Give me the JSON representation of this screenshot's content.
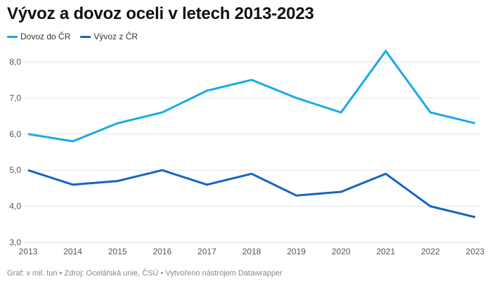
{
  "header": {
    "title": "Vývoz a dovoz oceli v letech 2013-2023"
  },
  "legend": [
    {
      "label": "Dovoz do ČR",
      "color": "#18a9e8"
    },
    {
      "label": "Vývoz z ČR",
      "color": "#1565c0"
    }
  ],
  "footer": {
    "text": "Graf: v mil. tun • Zdroj: Ocelářská unie, ČSÚ • Vytvořeno nástrojem Datawrapper"
  },
  "chart_data": {
    "type": "line",
    "title": "Vývoz a dovoz oceli v letech 2013-2023",
    "xlabel": "",
    "ylabel": "",
    "unit": "mil. tun",
    "x": [
      "2013",
      "2014",
      "2015",
      "2016",
      "2017",
      "2018",
      "2019",
      "2020",
      "2021",
      "2022",
      "2023"
    ],
    "series": [
      {
        "name": "Dovoz do ČR",
        "color": "#18a9e8",
        "values": [
          6.0,
          5.8,
          6.3,
          6.6,
          7.2,
          7.5,
          7.0,
          6.6,
          8.3,
          6.6,
          6.3
        ]
      },
      {
        "name": "Vývoz z ČR",
        "color": "#1565c0",
        "values": [
          5.0,
          4.6,
          4.7,
          5.0,
          4.6,
          4.9,
          4.3,
          4.4,
          4.9,
          4.0,
          3.7
        ]
      }
    ],
    "ylim": [
      3.0,
      8.0
    ],
    "yticks": [
      3.0,
      4.0,
      5.0,
      6.0,
      7.0,
      8.0
    ],
    "ytick_labels": [
      "3,0",
      "4,0",
      "5,0",
      "6,0",
      "7,0",
      "8,0"
    ],
    "grid": true,
    "legend_position": "top-left"
  }
}
